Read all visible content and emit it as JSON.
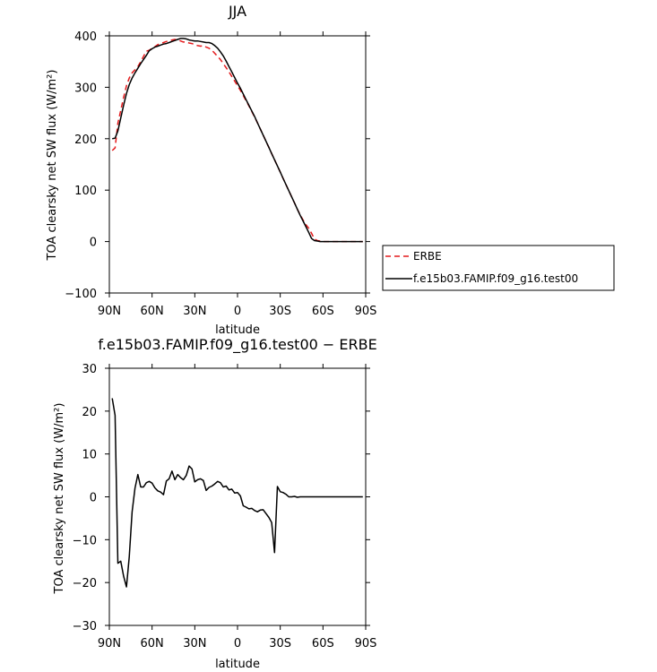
{
  "chart_data": [
    {
      "type": "line",
      "title": "JJA",
      "xlabel": "latitude",
      "ylabel": "TOA clearsky net SW flux (W/m²)",
      "xlim": [
        90,
        -90
      ],
      "ylim": [
        -100,
        400
      ],
      "xticks": [
        90,
        60,
        30,
        0,
        -30,
        -60,
        -90
      ],
      "xtick_labels": [
        "90N",
        "60N",
        "30N",
        "0",
        "30S",
        "60S",
        "90S"
      ],
      "yticks": [
        -100,
        0,
        100,
        200,
        300,
        400
      ],
      "ytick_labels": [
        "−100",
        "0",
        "100",
        "200",
        "300",
        "400"
      ],
      "legend_position": "outside-right",
      "series": [
        {
          "name": "ERBE",
          "color": "#e41a1c",
          "dash": "dashed",
          "x": [
            88,
            86,
            84,
            82,
            80,
            78,
            76,
            74,
            72,
            70,
            68,
            66,
            64,
            62,
            60,
            58,
            56,
            54,
            52,
            50,
            48,
            46,
            44,
            42,
            40,
            38,
            36,
            34,
            32,
            30,
            28,
            26,
            24,
            22,
            20,
            18,
            16,
            14,
            12,
            10,
            8,
            6,
            4,
            2,
            0,
            -2,
            -4,
            -6,
            -8,
            -10,
            -12,
            -14,
            -16,
            -18,
            -20,
            -22,
            -24,
            -26,
            -28,
            -30,
            -32,
            -34,
            -36,
            -38,
            -40,
            -42,
            -44,
            -46,
            -48,
            -50,
            -52,
            -54,
            -56,
            -58,
            -60,
            -62,
            -64,
            -66,
            -68,
            -70,
            -72,
            -74,
            -76,
            -78,
            -80,
            -82,
            -84,
            -86,
            -88
          ],
          "y": [
            177,
            182,
            230,
            255,
            280,
            303,
            318,
            328,
            334,
            340,
            350,
            360,
            370,
            372,
            376,
            379,
            383,
            385,
            387,
            389,
            390,
            392,
            393,
            392,
            390,
            388,
            388,
            386,
            385,
            383,
            381,
            380,
            381,
            378,
            376,
            372,
            366,
            360,
            354,
            346,
            338,
            330,
            321,
            312,
            303,
            294,
            284,
            274,
            264,
            253,
            242,
            231,
            219,
            207,
            195,
            183,
            171,
            159,
            147,
            135,
            123,
            111,
            99,
            87,
            75,
            63,
            52,
            42,
            33,
            26,
            16,
            5,
            2,
            1,
            0,
            0,
            0,
            0,
            0,
            0,
            0,
            0,
            0,
            0,
            0,
            0,
            0,
            0,
            0
          ]
        },
        {
          "name": "f.e15b03.FAMIP.f09_g16.test00",
          "color": "#000000",
          "dash": "solid",
          "x": [
            88,
            86,
            84,
            82,
            80,
            78,
            76,
            74,
            72,
            70,
            68,
            66,
            64,
            62,
            60,
            58,
            56,
            54,
            52,
            50,
            48,
            46,
            44,
            42,
            40,
            38,
            36,
            34,
            32,
            30,
            28,
            26,
            24,
            22,
            20,
            18,
            16,
            14,
            12,
            10,
            8,
            6,
            4,
            2,
            0,
            -2,
            -4,
            -6,
            -8,
            -10,
            -12,
            -14,
            -16,
            -18,
            -20,
            -22,
            -24,
            -26,
            -28,
            -30,
            -32,
            -34,
            -36,
            -38,
            -40,
            -42,
            -44,
            -46,
            -48,
            -50,
            -52,
            -54,
            -56,
            -58,
            -60,
            -62,
            -64,
            -66,
            -68,
            -70,
            -72,
            -74,
            -76,
            -78,
            -80,
            -82,
            -84,
            -86,
            -88
          ],
          "y": [
            200,
            201,
            215,
            240,
            265,
            288,
            305,
            318,
            328,
            337,
            346,
            354,
            362,
            371,
            375,
            378,
            380,
            382,
            384,
            385,
            387,
            389,
            391,
            393,
            395,
            395,
            394,
            392,
            391,
            390,
            390,
            389,
            388,
            387,
            387,
            385,
            381,
            376,
            369,
            361,
            351,
            340,
            330,
            319,
            308,
            298,
            287,
            276,
            265,
            254,
            243,
            231,
            219,
            207,
            195,
            183,
            171,
            159,
            147,
            135,
            123,
            111,
            99,
            87,
            75,
            63,
            51,
            40,
            29,
            18,
            6,
            2,
            1,
            0,
            0,
            0,
            0,
            0,
            0,
            0,
            0,
            0,
            0,
            0,
            0,
            0,
            0,
            0,
            0
          ]
        }
      ]
    },
    {
      "type": "line",
      "title": "f.e15b03.FAMIP.f09_g16.test00 − ERBE",
      "xlabel": "latitude",
      "ylabel": "TOA clearsky net SW flux (W/m²)",
      "xlim": [
        90,
        -90
      ],
      "ylim": [
        -30,
        30
      ],
      "xticks": [
        90,
        60,
        30,
        0,
        -30,
        -60,
        -90
      ],
      "xtick_labels": [
        "90N",
        "60N",
        "30N",
        "0",
        "30S",
        "60S",
        "90S"
      ],
      "yticks": [
        -30,
        -20,
        -10,
        0,
        10,
        20,
        30
      ],
      "ytick_labels": [
        "−30",
        "−20",
        "−10",
        "0",
        "10",
        "20",
        "30"
      ],
      "series": [
        {
          "color": "#000000",
          "dash": "solid",
          "x": [
            88,
            86,
            84,
            82,
            80,
            78,
            76,
            74,
            72,
            70,
            68,
            66,
            64,
            62,
            60,
            58,
            56,
            54,
            52,
            50,
            48,
            46,
            44,
            42,
            40,
            38,
            36,
            34,
            32,
            30,
            28,
            26,
            24,
            22,
            20,
            18,
            16,
            14,
            12,
            10,
            8,
            6,
            4,
            2,
            0,
            -2,
            -4,
            -6,
            -8,
            -10,
            -12,
            -14,
            -16,
            -18,
            -20,
            -22,
            -24,
            -26,
            -28,
            -30,
            -32,
            -34,
            -36,
            -38,
            -40,
            -42,
            -44,
            -46,
            -48,
            -50,
            -52,
            -54,
            -56,
            -58,
            -60,
            -62,
            -64,
            -66,
            -68,
            -70,
            -72,
            -74,
            -76,
            -78,
            -80,
            -82,
            -84,
            -86,
            -88
          ],
          "y": [
            23,
            19,
            -15.5,
            -15,
            -18.5,
            -21,
            -14,
            -3.5,
            2,
            5.2,
            2.3,
            2.3,
            3.3,
            3.6,
            3.2,
            2.1,
            1.4,
            1.1,
            0.5,
            3.7,
            4.2,
            6,
            4,
            5.2,
            4.5,
            4,
            5,
            7.2,
            6.5,
            3.5,
            4,
            4.2,
            3.8,
            1.5,
            2.2,
            2.5,
            3,
            3.6,
            3.3,
            2.3,
            2.5,
            1.6,
            1.8,
            0.9,
            1,
            0.2,
            -2.1,
            -2.4,
            -2.8,
            -2.7,
            -3.2,
            -3.5,
            -3.1,
            -3,
            -3.9,
            -4.8,
            -6,
            -13,
            2.4,
            1.2,
            1,
            0.6,
            0,
            0,
            0.1,
            -0.1,
            0,
            0,
            0,
            0,
            0,
            0,
            0,
            0,
            0,
            0,
            0,
            0,
            0,
            0,
            0,
            0,
            0,
            0,
            0,
            0,
            0,
            0,
            0
          ]
        }
      ]
    }
  ]
}
